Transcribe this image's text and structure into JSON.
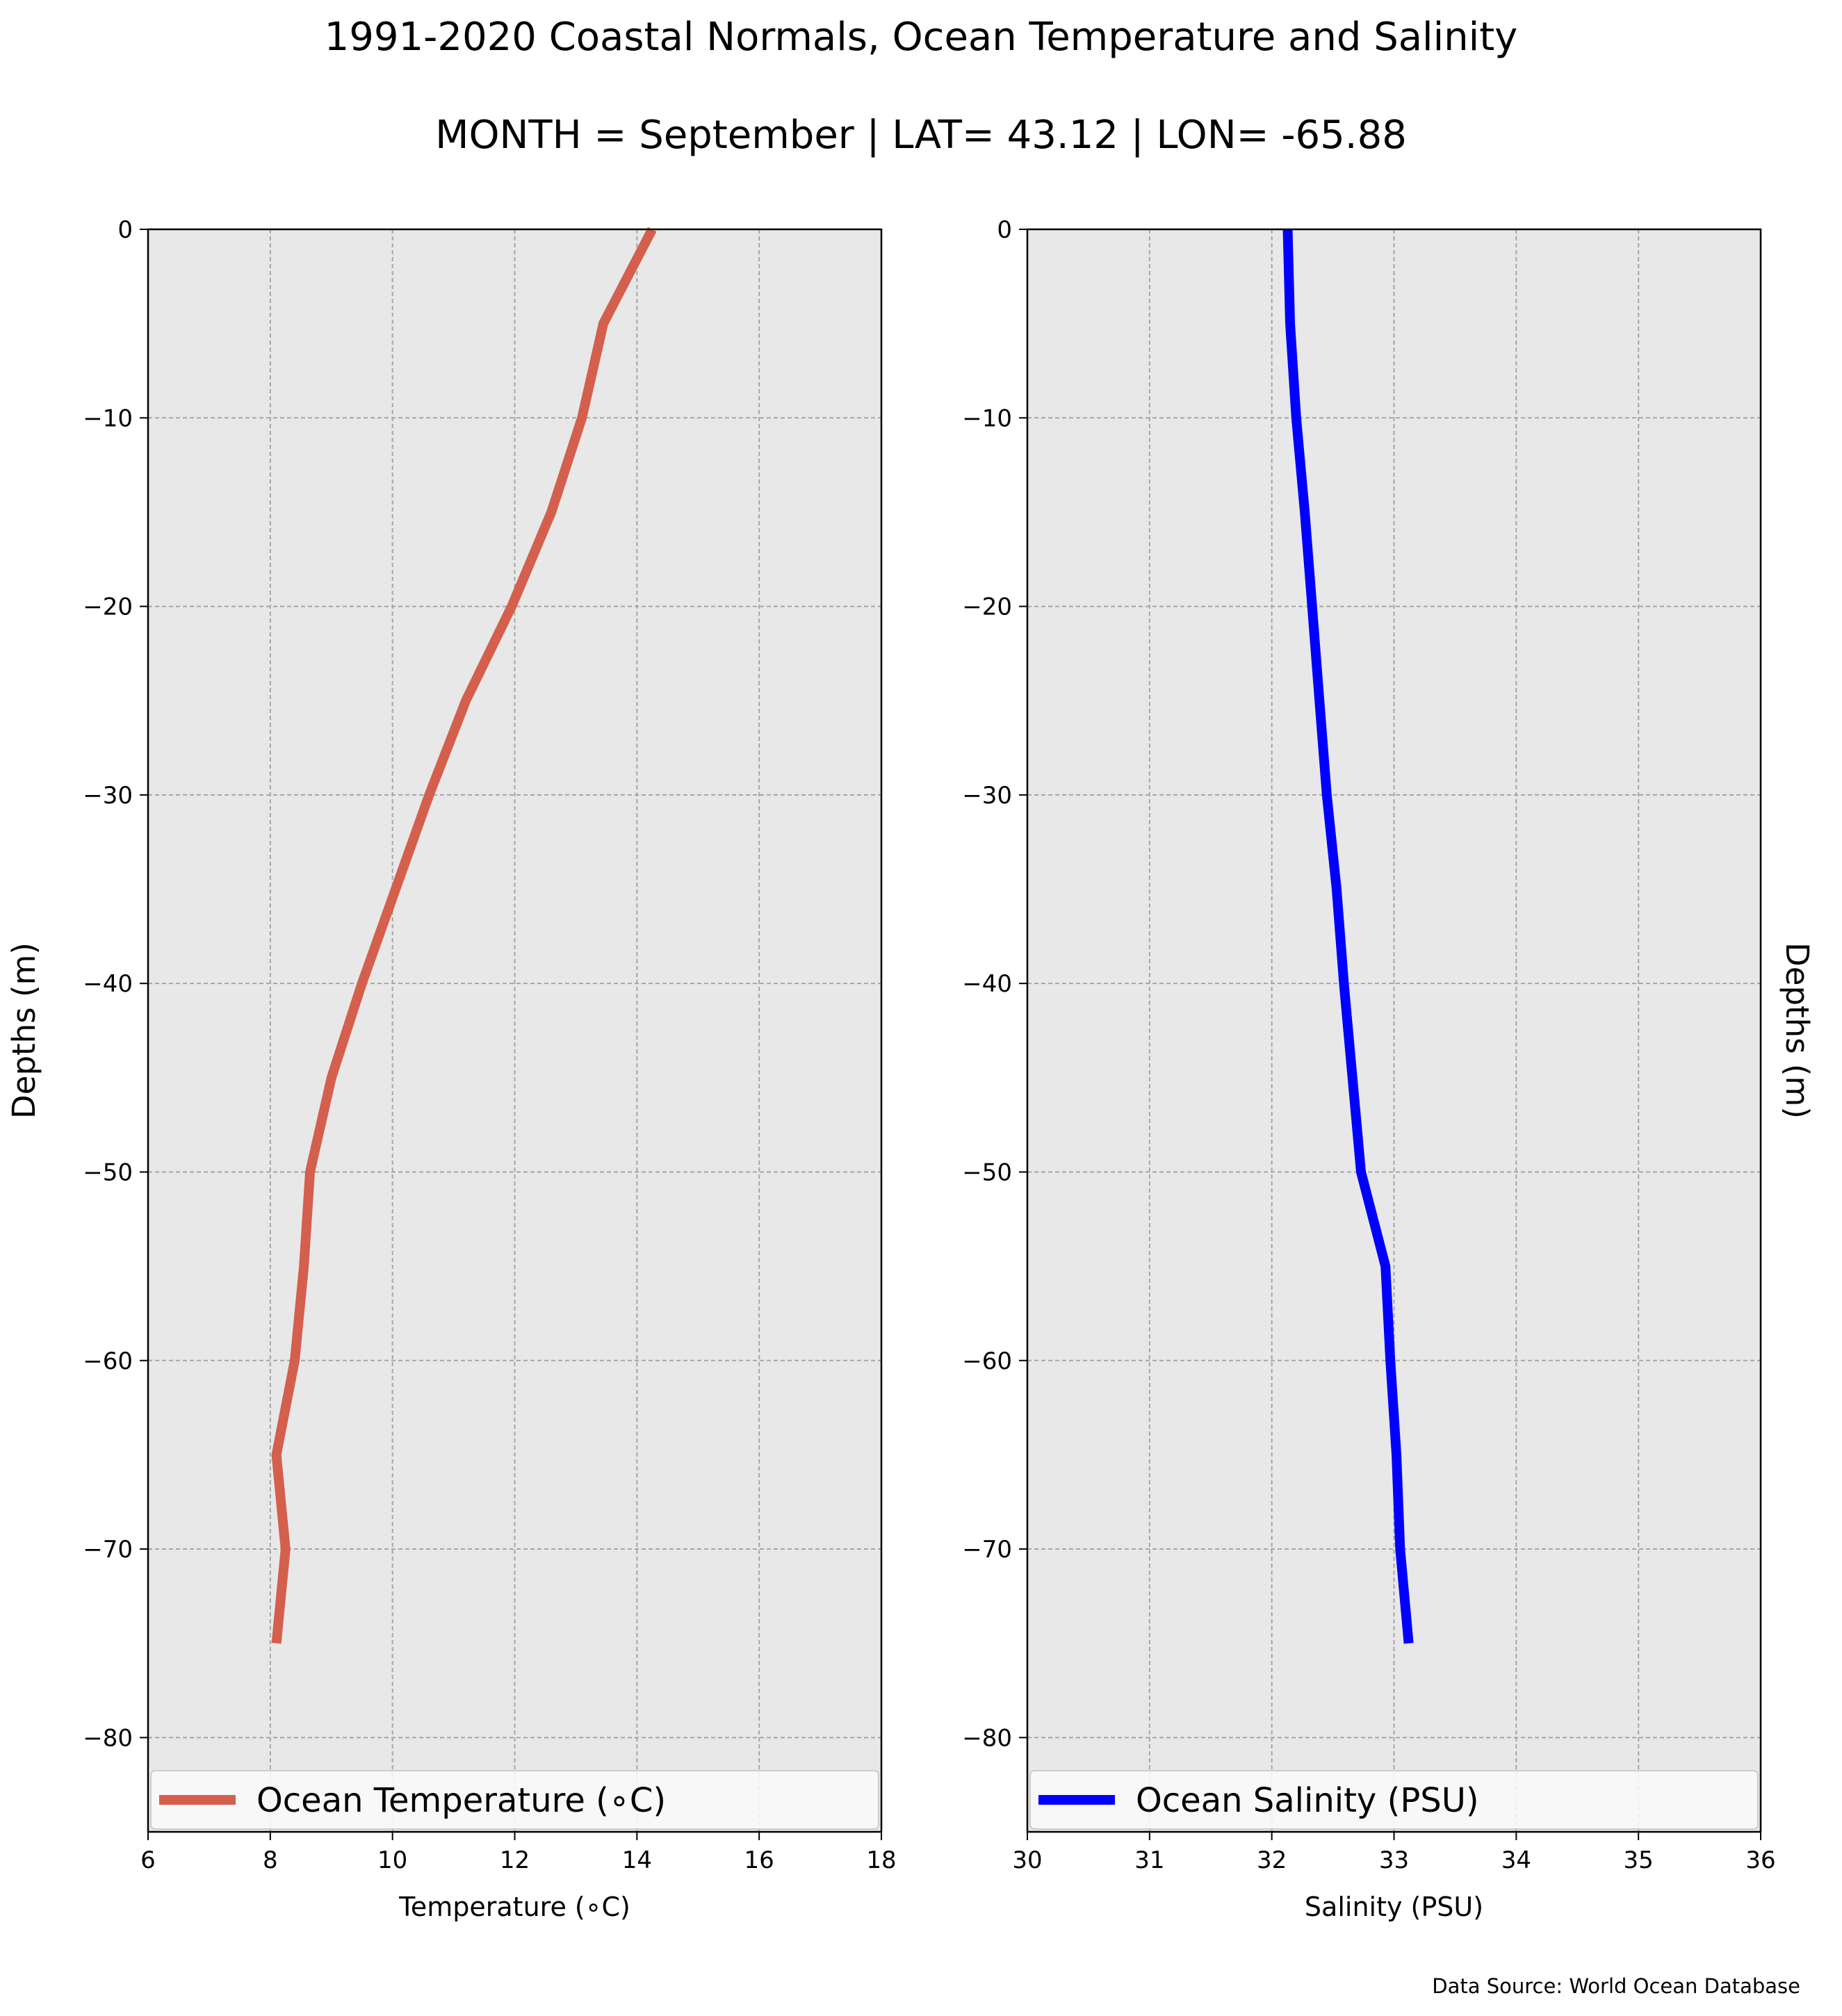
{
  "figure": {
    "title": "1991-2020 Coastal Normals, Ocean Temperature and Salinity",
    "subtitle": "MONTH = September | LAT= 43.12 | LON= -65.88",
    "source": "Data Source: World Ocean Database",
    "background": "#e8e8e8",
    "grid_color": "#a6a6a6"
  },
  "chart_data": [
    {
      "type": "line",
      "xlabel": "Temperature (∘C)",
      "ylabel": "Depths (m)",
      "ylabel_side": "left",
      "xlim": [
        6,
        18
      ],
      "ylim": [
        -85,
        0
      ],
      "xticks": [
        6,
        8,
        10,
        12,
        14,
        16,
        18
      ],
      "yticks": [
        0,
        -10,
        -20,
        -30,
        -40,
        -50,
        -60,
        -70,
        -80
      ],
      "grid": true,
      "legend_placement": "bottom",
      "series": [
        {
          "name": "Ocean Temperature (∘C)",
          "color": "#d45f4d",
          "x": [
            14.25,
            13.45,
            13.1,
            12.6,
            11.95,
            11.2,
            10.6,
            10.05,
            9.5,
            9.0,
            8.65,
            8.55,
            8.4,
            8.1,
            8.25,
            8.1
          ],
          "y": [
            0,
            -5,
            -10,
            -15,
            -20,
            -25,
            -30,
            -35,
            -40,
            -45,
            -50,
            -55,
            -60,
            -65,
            -70,
            -75
          ]
        }
      ]
    },
    {
      "type": "line",
      "xlabel": "Salinity (PSU)",
      "ylabel": "Depths (m)",
      "ylabel_side": "right",
      "xlim": [
        30,
        36
      ],
      "ylim": [
        -85,
        0
      ],
      "xticks": [
        30,
        31,
        32,
        33,
        34,
        35,
        36
      ],
      "yticks": [
        0,
        -10,
        -20,
        -30,
        -40,
        -50,
        -60,
        -70,
        -80
      ],
      "grid": true,
      "legend_placement": "bottom",
      "series": [
        {
          "name": "Ocean Salinity (PSU)",
          "color": "#0000ff",
          "x": [
            32.13,
            32.15,
            32.2,
            32.27,
            32.33,
            32.39,
            32.45,
            32.53,
            32.59,
            32.66,
            32.73,
            32.93,
            32.97,
            33.02,
            33.05,
            33.12
          ],
          "y": [
            0,
            -5,
            -10,
            -15,
            -20,
            -25,
            -30,
            -35,
            -40,
            -45,
            -50,
            -55,
            -60,
            -65,
            -70,
            -75
          ]
        }
      ]
    }
  ]
}
